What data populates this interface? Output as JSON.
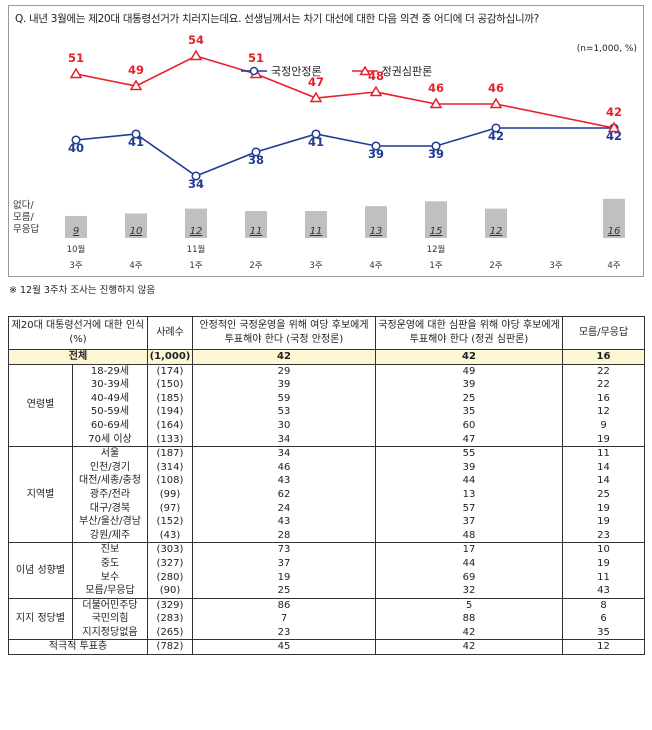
{
  "question": "Q. 내년 3월에는 제20대 대통령선거가 치러지는데요. 선생님께서는 차기 대선에 대한 다음 의견 중 어디에 더 공감하십니까?",
  "sample_note": "(n=1,000, %)",
  "footnote": "※ 12월 3주차 조사는 진행하지 않음",
  "colors": {
    "stability": "#1f3a93",
    "judgment": "#e8202a",
    "bar": "#c0c0c0",
    "total_bg": "#fdf6d3"
  },
  "chart_data": {
    "type": "line",
    "series": [
      {
        "name": "국정안정론",
        "values": [
          40,
          41,
          34,
          38,
          41,
          39,
          39,
          42,
          null,
          42
        ]
      },
      {
        "name": "정권심판론",
        "values": [
          51,
          49,
          54,
          51,
          47,
          48,
          46,
          46,
          null,
          42
        ]
      }
    ],
    "bars": {
      "label": "없다/모름/무응답",
      "values": [
        9,
        10,
        12,
        11,
        11,
        13,
        15,
        12,
        null,
        16
      ]
    },
    "x_month_labels": [
      "10월",
      "",
      "11월",
      "",
      "",
      "",
      "12월",
      "",
      "",
      ""
    ],
    "x_week_labels": [
      "3주",
      "4주",
      "1주",
      "2주",
      "3주",
      "4주",
      "1주",
      "2주",
      "3주",
      "4주"
    ],
    "legend_position": "top-center"
  },
  "table": {
    "headers": {
      "group": "제20대 대통령선거에 대한 인식(%)",
      "cases": "사례수",
      "c1": "안정적인 국정운영을 위해 여당 후보에게 투표해야 한다 (국정 안정론)",
      "c2": "국정운영에 대한 심판을 위해 야당 후보에게 투표해야 한다 (정권 심판론)",
      "c3": "모름/무응답"
    },
    "total": {
      "label": "전체",
      "n": "(1,000)",
      "c1": "42",
      "c2": "42",
      "c3": "16"
    },
    "groups": [
      {
        "name": "연령별",
        "rows": [
          {
            "label": "18-29세",
            "n": "(174)",
            "c1": "29",
            "c2": "49",
            "c3": "22"
          },
          {
            "label": "30-39세",
            "n": "(150)",
            "c1": "39",
            "c2": "39",
            "c3": "22"
          },
          {
            "label": "40-49세",
            "n": "(185)",
            "c1": "59",
            "c2": "25",
            "c3": "16"
          },
          {
            "label": "50-59세",
            "n": "(194)",
            "c1": "53",
            "c2": "35",
            "c3": "12"
          },
          {
            "label": "60-69세",
            "n": "(164)",
            "c1": "30",
            "c2": "60",
            "c3": "9"
          },
          {
            "label": "70세 이상",
            "n": "(133)",
            "c1": "34",
            "c2": "47",
            "c3": "19"
          }
        ]
      },
      {
        "name": "지역별",
        "rows": [
          {
            "label": "서울",
            "n": "(187)",
            "c1": "34",
            "c2": "55",
            "c3": "11"
          },
          {
            "label": "인천/경기",
            "n": "(314)",
            "c1": "46",
            "c2": "39",
            "c3": "14"
          },
          {
            "label": "대전/세종/충청",
            "n": "(108)",
            "c1": "43",
            "c2": "44",
            "c3": "14"
          },
          {
            "label": "광주/전라",
            "n": "(99)",
            "c1": "62",
            "c2": "13",
            "c3": "25"
          },
          {
            "label": "대구/경북",
            "n": "(97)",
            "c1": "24",
            "c2": "57",
            "c3": "19"
          },
          {
            "label": "부산/울산/경남",
            "n": "(152)",
            "c1": "43",
            "c2": "37",
            "c3": "19"
          },
          {
            "label": "강원/제주",
            "n": "(43)",
            "c1": "28",
            "c2": "48",
            "c3": "23"
          }
        ]
      },
      {
        "name": "이념 성향별",
        "rows": [
          {
            "label": "진보",
            "n": "(303)",
            "c1": "73",
            "c2": "17",
            "c3": "10"
          },
          {
            "label": "중도",
            "n": "(327)",
            "c1": "37",
            "c2": "44",
            "c3": "19"
          },
          {
            "label": "보수",
            "n": "(280)",
            "c1": "19",
            "c2": "69",
            "c3": "11"
          },
          {
            "label": "모름/무응답",
            "n": "(90)",
            "c1": "25",
            "c2": "32",
            "c3": "43"
          }
        ]
      },
      {
        "name": "지지 정당별",
        "rows": [
          {
            "label": "더불어민주당",
            "n": "(329)",
            "c1": "86",
            "c2": "5",
            "c3": "8"
          },
          {
            "label": "국민의힘",
            "n": "(283)",
            "c1": "7",
            "c2": "88",
            "c3": "6"
          },
          {
            "label": "지지정당없음",
            "n": "(265)",
            "c1": "23",
            "c2": "42",
            "c3": "35"
          }
        ]
      }
    ],
    "last": {
      "label": "적극적 투표층",
      "n": "(782)",
      "c1": "45",
      "c2": "42",
      "c3": "12"
    }
  }
}
